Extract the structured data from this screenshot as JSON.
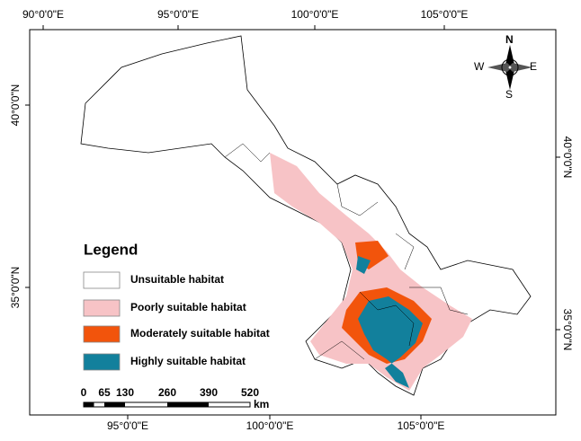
{
  "map": {
    "top_labels": [
      "90°0'0\"E",
      "95°0'0\"E",
      "100°0'0\"E",
      "105°0'0\"E"
    ],
    "bottom_labels": [
      "95°0'0\"E",
      "100°0'0\"E",
      "105°0'0\"E"
    ],
    "left_labels": [
      "40°0'0\"N",
      "35°0'0\"N"
    ],
    "right_labels": [
      "40°0'0\"N",
      "35°0'0\"N"
    ],
    "legend": {
      "title": "Legend",
      "items": [
        {
          "label": "Unsuitable habitat",
          "color": "#ffffff"
        },
        {
          "label": "Poorly suitable habitat",
          "color": "#f7c3c6"
        },
        {
          "label": "Moderately suitable habitat",
          "color": "#f2540c"
        },
        {
          "label": "Highly suitable habitat",
          "color": "#12809c"
        }
      ]
    },
    "scale_bar": {
      "labels": [
        0,
        65,
        130,
        260,
        390,
        520
      ],
      "unit": "km"
    },
    "compass": {
      "north": "N",
      "east": "E",
      "south": "S",
      "west": "W"
    }
  }
}
